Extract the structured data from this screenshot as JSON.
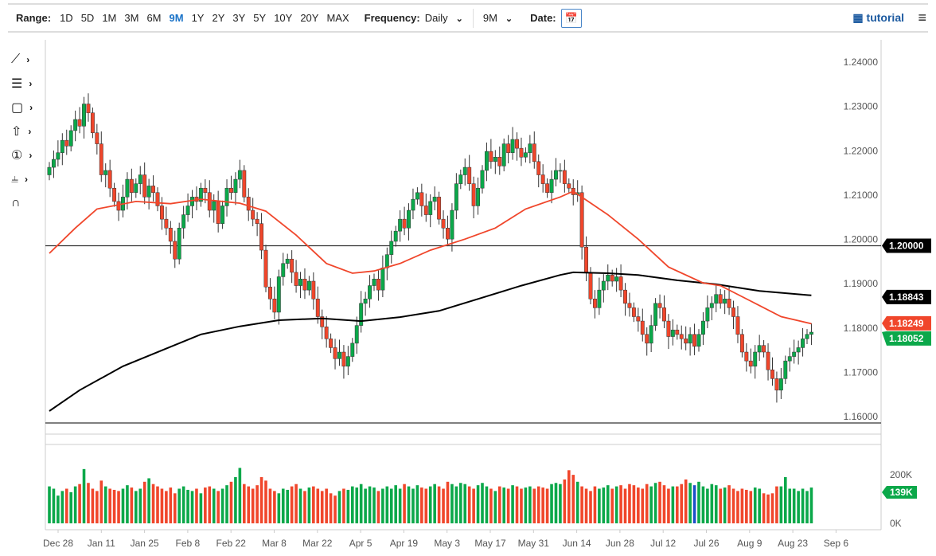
{
  "toolbar": {
    "range_label": "Range:",
    "ranges": [
      "1D",
      "5D",
      "1M",
      "3M",
      "6M",
      "9M",
      "1Y",
      "2Y",
      "3Y",
      "5Y",
      "10Y",
      "20Y",
      "MAX"
    ],
    "active_range": "9M",
    "frequency_label": "Frequency:",
    "frequency": "Daily",
    "period": "9M",
    "date_label": "Date:",
    "tutorial": "tutorial"
  },
  "colors": {
    "up": "#0ba84a",
    "down": "#f0462b",
    "ma50": "#f0462b",
    "ma200": "#000000",
    "volume_highlight": "#1c4fc8"
  },
  "chart_data": {
    "type": "candlestick",
    "title": "",
    "y_ticks": [
      "1.24000",
      "1.23000",
      "1.22000",
      "1.21000",
      "1.20000",
      "1.19000",
      "1.18000",
      "1.17000",
      "1.16000"
    ],
    "ylim": [
      1.155,
      1.2445
    ],
    "x_ticks": [
      "Dec 28",
      "Jan 11",
      "Jan 25",
      "Feb 8",
      "Feb 22",
      "Mar 8",
      "Mar 22",
      "Apr 5",
      "Apr 19",
      "May 3",
      "May 17",
      "May 31",
      "Jun 14",
      "Jun 28",
      "Jul 12",
      "Jul 26",
      "Aug 9",
      "Aug 23",
      "Sep 6"
    ],
    "first_open": 1.216,
    "close": [
      1.2177,
      1.2195,
      1.221,
      1.2238,
      1.2225,
      1.226,
      1.2285,
      1.227,
      1.232,
      1.23,
      1.2255,
      1.223,
      1.216,
      1.217,
      1.213,
      1.21,
      1.208,
      1.211,
      1.215,
      1.212,
      1.214,
      1.216,
      1.211,
      1.2135,
      1.212,
      1.209,
      1.206,
      1.204,
      1.201,
      1.197,
      1.204,
      1.207,
      1.209,
      1.211,
      1.21,
      1.213,
      1.212,
      1.208,
      1.21,
      1.205,
      1.209,
      1.213,
      1.212,
      1.215,
      1.217,
      1.211,
      1.208,
      1.206,
      1.205,
      1.199,
      1.1907,
      1.188,
      1.185,
      1.193,
      1.196,
      1.197,
      1.194,
      1.191,
      1.1925,
      1.19,
      1.192,
      1.188,
      1.184,
      1.1817,
      1.179,
      1.177,
      1.1745,
      1.176,
      1.1728,
      1.175,
      1.178,
      1.182,
      1.187,
      1.188,
      1.191,
      1.1925,
      1.19,
      1.195,
      1.198,
      1.201,
      1.2033,
      1.206,
      1.204,
      1.208,
      1.2105,
      1.212,
      1.209,
      1.207,
      1.21,
      1.211,
      1.206,
      1.204,
      1.2015,
      1.208,
      1.214,
      1.216,
      1.2177,
      1.214,
      1.209,
      1.213,
      1.217,
      1.2213,
      1.219,
      1.22,
      1.218,
      1.223,
      1.221,
      1.224,
      1.222,
      1.22,
      1.221,
      1.223,
      1.219,
      1.216,
      1.214,
      1.212,
      1.215,
      1.217,
      1.217,
      1.214,
      1.213,
      1.2115,
      1.212,
      1.1997,
      1.194,
      1.188,
      1.186,
      1.19,
      1.192,
      1.1934,
      1.192,
      1.193,
      1.19,
      1.187,
      1.186,
      1.184,
      1.183,
      1.18,
      1.178,
      1.182,
      1.187,
      1.186,
      1.183,
      1.1795,
      1.181,
      1.18,
      1.179,
      1.178,
      1.18,
      1.1773,
      1.18,
      1.183,
      1.186,
      1.187,
      1.189,
      1.187,
      1.188,
      1.186,
      1.184,
      1.18,
      1.176,
      1.174,
      1.1728,
      1.176,
      1.1775,
      1.176,
      1.172,
      1.17,
      1.1674,
      1.17,
      1.174,
      1.175,
      1.176,
      1.177,
      1.179,
      1.18,
      1.1805
    ],
    "volume_k": [
      160,
      150,
      120,
      140,
      150,
      135,
      160,
      170,
      235,
      175,
      150,
      140,
      185,
      160,
      150,
      145,
      140,
      150,
      165,
      155,
      140,
      150,
      180,
      195,
      170,
      160,
      150,
      140,
      155,
      130,
      150,
      160,
      145,
      140,
      150,
      130,
      155,
      160,
      150,
      140,
      150,
      165,
      180,
      200,
      240,
      170,
      160,
      150,
      165,
      200,
      185,
      150,
      140,
      130,
      150,
      145,
      160,
      170,
      150,
      140,
      155,
      160,
      150,
      140,
      150,
      130,
      120,
      140,
      150,
      145,
      160,
      155,
      170,
      150,
      160,
      155,
      140,
      150,
      160,
      150,
      165,
      150,
      170,
      160,
      150,
      165,
      155,
      150,
      160,
      170,
      160,
      150,
      180,
      170,
      160,
      175,
      170,
      160,
      150,
      165,
      175,
      160,
      150,
      140,
      160,
      155,
      150,
      165,
      160,
      150,
      155,
      160,
      150,
      160,
      155,
      150,
      170,
      175,
      170,
      190,
      230,
      210,
      180,
      160,
      150,
      140,
      160,
      150,
      155,
      165,
      150,
      160,
      165,
      150,
      170,
      165,
      155,
      150,
      170,
      160,
      175,
      180,
      165,
      150,
      160,
      160,
      170,
      190,
      175,
      165,
      180,
      160,
      150,
      170,
      165,
      150,
      155,
      165,
      150,
      140,
      150,
      145,
      140,
      155,
      150,
      130,
      125,
      130,
      160,
      160,
      200,
      150,
      150,
      140,
      150,
      140,
      155,
      170,
      120,
      139
    ],
    "volume_highlight_index": 149,
    "volume_ticks": [
      "200K",
      "0K"
    ],
    "volume_last": "139K",
    "ma50": [
      [
        0,
        1.1983
      ],
      [
        6,
        1.204
      ],
      [
        11,
        1.2083
      ],
      [
        20,
        1.21
      ],
      [
        28,
        1.2095
      ],
      [
        35,
        1.2105
      ],
      [
        44,
        1.2096
      ],
      [
        50,
        1.2078
      ],
      [
        57,
        1.2024
      ],
      [
        64,
        1.196
      ],
      [
        70,
        1.1938
      ],
      [
        75,
        1.1943
      ],
      [
        81,
        1.196
      ],
      [
        88,
        1.199
      ],
      [
        96,
        1.2015
      ],
      [
        103,
        1.204
      ],
      [
        110,
        1.2083
      ],
      [
        118,
        1.211
      ],
      [
        121,
        1.2123
      ],
      [
        129,
        1.207
      ],
      [
        136,
        1.2015
      ],
      [
        143,
        1.1952
      ],
      [
        151,
        1.1916
      ],
      [
        155,
        1.191
      ],
      [
        162,
        1.1875
      ],
      [
        169,
        1.184
      ],
      [
        176,
        1.1824
      ]
    ],
    "ma200": [
      [
        0,
        1.1627
      ],
      [
        7,
        1.1674
      ],
      [
        17,
        1.1728
      ],
      [
        26,
        1.1764
      ],
      [
        35,
        1.18
      ],
      [
        44,
        1.1818
      ],
      [
        53,
        1.1832
      ],
      [
        63,
        1.1836
      ],
      [
        72,
        1.183
      ],
      [
        81,
        1.1839
      ],
      [
        90,
        1.1853
      ],
      [
        99,
        1.188
      ],
      [
        109,
        1.191
      ],
      [
        118,
        1.1934
      ],
      [
        121,
        1.194
      ],
      [
        129,
        1.1938
      ],
      [
        136,
        1.1934
      ],
      [
        145,
        1.1922
      ],
      [
        154,
        1.1913
      ],
      [
        164,
        1.1898
      ],
      [
        176,
        1.1888
      ]
    ],
    "hlines": [
      1.2,
      1.16
    ],
    "price_tags": [
      {
        "label": "1.20000",
        "value": 1.2,
        "color": "#000000"
      },
      {
        "label": "1.18843",
        "value": 1.18843,
        "color": "#000000"
      },
      {
        "label": "1.18249",
        "value": 1.18249,
        "color": "#f0462b"
      },
      {
        "label": "1.18052",
        "value": 1.18052,
        "color": "#0ba84a"
      }
    ]
  }
}
